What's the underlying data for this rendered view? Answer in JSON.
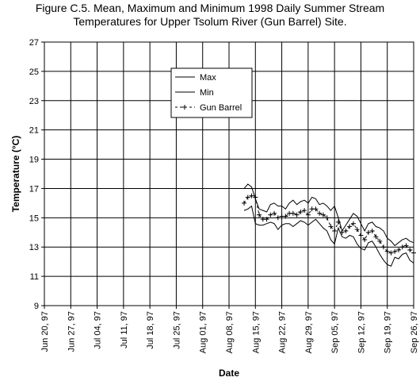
{
  "chart_data": {
    "type": "line",
    "title": [
      "Figure C.5.  Mean, Maximum and Minimum 1998 Daily Summer Stream",
      "Temperatures for  Upper Tsolum River (Gun Barrel) Site."
    ],
    "xlabel": "Date",
    "ylabel": "Temperature (°C)",
    "x_ticks": [
      "Jun 20, 97",
      "Jun 27, 97",
      "Jul 04, 97",
      "Jul 11, 97",
      "Jul 18, 97",
      "Jul 25, 97",
      "Aug 01, 97",
      "Aug 08, 97",
      "Aug 15, 97",
      "Aug 22, 97",
      "Aug 29, 97",
      "Sep 05, 97",
      "Sep 12, 97",
      "Sep 19, 97",
      "Sep 26, 97"
    ],
    "y_ticks": [
      9,
      11,
      13,
      15,
      17,
      19,
      21,
      23,
      25,
      27
    ],
    "xlim": [
      0,
      98
    ],
    "ylim": [
      9,
      27
    ],
    "grid": true,
    "legend": "top-center",
    "series": [
      {
        "name": "Max",
        "style": "solid",
        "x": [
          53,
          54,
          55,
          56,
          57,
          58,
          59,
          60,
          61,
          62,
          63,
          64,
          65,
          66,
          67,
          68,
          69,
          70,
          71,
          72,
          73,
          74,
          75,
          76,
          77,
          78,
          79,
          80,
          81,
          82,
          83,
          84,
          85,
          86,
          87,
          88,
          89,
          90,
          91,
          92,
          93,
          94,
          95,
          96,
          97,
          98
        ],
        "values": [
          17.0,
          17.3,
          17.1,
          16.3,
          15.6,
          15.5,
          15.4,
          15.9,
          16.0,
          15.8,
          15.8,
          15.6,
          16.0,
          16.2,
          15.9,
          16.1,
          16.2,
          16.0,
          16.4,
          16.3,
          15.9,
          16.0,
          15.8,
          15.5,
          15.8,
          15.0,
          14.1,
          14.5,
          14.9,
          15.3,
          15.1,
          14.6,
          14.1,
          14.6,
          14.7,
          14.4,
          14.3,
          14.1,
          13.6,
          13.4,
          13.1,
          13.3,
          13.5,
          13.6,
          13.4,
          13.3
        ]
      },
      {
        "name": "Min",
        "style": "solid",
        "x": [
          53,
          54,
          55,
          56,
          57,
          58,
          59,
          60,
          61,
          62,
          63,
          64,
          65,
          66,
          67,
          68,
          69,
          70,
          71,
          72,
          73,
          74,
          75,
          76,
          77,
          78,
          79,
          80,
          81,
          82,
          83,
          84,
          85,
          86,
          87,
          88,
          89,
          90,
          91,
          92,
          93,
          94,
          95,
          96,
          97,
          98
        ],
        "values": [
          15.5,
          15.6,
          15.8,
          14.6,
          14.5,
          14.5,
          14.6,
          14.7,
          14.6,
          14.2,
          14.5,
          14.6,
          14.6,
          14.4,
          14.6,
          14.8,
          14.7,
          14.5,
          14.7,
          14.9,
          14.6,
          14.3,
          14.1,
          13.5,
          13.2,
          14.3,
          13.7,
          13.6,
          13.8,
          13.7,
          13.2,
          12.9,
          12.8,
          13.3,
          13.4,
          13.0,
          12.5,
          12.1,
          11.8,
          11.7,
          12.3,
          12.2,
          12.5,
          12.6,
          12.1,
          11.9
        ]
      },
      {
        "name": "Gun Barrel",
        "style": "dashed-plus",
        "x": [
          53,
          54,
          55,
          56,
          57,
          58,
          59,
          60,
          61,
          62,
          63,
          64,
          65,
          66,
          67,
          68,
          69,
          70,
          71,
          72,
          73,
          74,
          75,
          76,
          77,
          78,
          79,
          80,
          81,
          82,
          83,
          84,
          85,
          86,
          87,
          88,
          89,
          90,
          91,
          92,
          93,
          94,
          95,
          96,
          97,
          98
        ],
        "values": [
          16.0,
          16.4,
          16.5,
          16.4,
          15.2,
          14.9,
          14.9,
          15.2,
          15.3,
          15.0,
          15.1,
          15.1,
          15.3,
          15.3,
          15.2,
          15.4,
          15.5,
          15.2,
          15.6,
          15.6,
          15.3,
          15.2,
          15.0,
          14.4,
          14.1,
          14.7,
          14.0,
          14.1,
          14.4,
          14.6,
          14.2,
          13.8,
          13.5,
          14.0,
          14.1,
          13.7,
          13.4,
          13.0,
          12.7,
          12.6,
          12.7,
          12.8,
          13.0,
          13.1,
          12.8,
          12.6
        ]
      }
    ]
  }
}
